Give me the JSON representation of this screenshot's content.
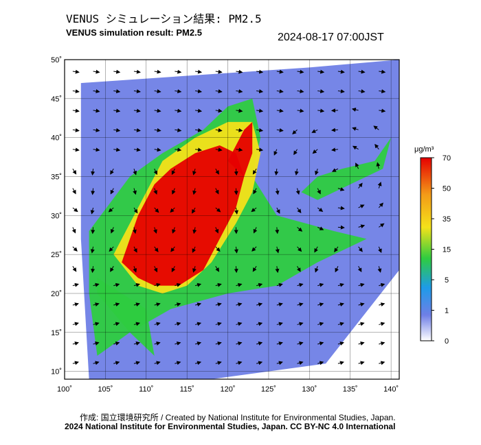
{
  "header": {
    "title_jp": "VENUS シミュレーション結果: PM2.5",
    "title_en": "VENUS simulation result: PM2.5",
    "timestamp": "2024-08-17 07:00JST"
  },
  "footer": {
    "credit_line": "作成: 国立環境研究所 / Created by National Institute for Environmental Studies, Japan.",
    "copyright_line": "2024 National Institute for Environmental Studies, Japan. CC BY-NC 4.0 International"
  },
  "colors": {
    "level_0": "#ffffff",
    "level_1": "#6f7fe6",
    "level_5": "#1e9be8",
    "level_15": "#2ecc40",
    "level_35": "#f4e21a",
    "level_50": "#f39a18",
    "level_70": "#e60000",
    "frame": "#000000"
  },
  "chart_data": {
    "type": "heatmap",
    "xlim": [
      100,
      141
    ],
    "ylim": [
      9,
      50
    ],
    "x_ticks": [
      100,
      105,
      110,
      115,
      120,
      125,
      130,
      135,
      140
    ],
    "x_tick_labels": [
      "100˚",
      "105˚",
      "110˚",
      "115˚",
      "120˚",
      "125˚",
      "130˚",
      "135˚",
      "140˚"
    ],
    "y_ticks": [
      10,
      15,
      20,
      25,
      30,
      35,
      40,
      45,
      50
    ],
    "y_tick_labels": [
      "10˚",
      "15˚",
      "20˚",
      "25˚",
      "30˚",
      "35˚",
      "40˚",
      "45˚",
      "50˚"
    ],
    "colorbar": {
      "unit": "μg/m³",
      "ticks": [
        0,
        1,
        5,
        15,
        35,
        50,
        70
      ],
      "tick_labels": [
        "0",
        "1",
        "5",
        "15",
        "35",
        "50",
        "70"
      ]
    },
    "regions": [
      {
        "name": "background_low",
        "value": 3,
        "polygon": [
          [
            102,
            47
          ],
          [
            130,
            49
          ],
          [
            141,
            50
          ],
          [
            141,
            23
          ],
          [
            132,
            11
          ],
          [
            118,
            9
          ],
          [
            103,
            9
          ],
          [
            102,
            27
          ]
        ]
      },
      {
        "name": "green_plume",
        "value": 20,
        "polygon": [
          [
            103,
            28
          ],
          [
            108,
            35
          ],
          [
            112,
            38
          ],
          [
            117,
            41
          ],
          [
            120,
            44
          ],
          [
            123,
            45
          ],
          [
            124,
            40
          ],
          [
            123,
            35
          ],
          [
            126,
            30
          ],
          [
            133,
            28
          ],
          [
            137,
            27
          ],
          [
            131,
            24
          ],
          [
            126,
            21
          ],
          [
            120,
            20
          ],
          [
            113,
            18
          ],
          [
            108,
            15
          ],
          [
            104,
            12
          ],
          [
            103,
            20
          ]
        ]
      },
      {
        "name": "green_low_tongue",
        "value": 18,
        "polygon": [
          [
            104,
            20
          ],
          [
            108,
            15
          ],
          [
            111,
            12
          ],
          [
            110,
            18
          ],
          [
            104,
            22
          ]
        ]
      },
      {
        "name": "yellow_band",
        "value": 45,
        "polygon": [
          [
            106,
            25
          ],
          [
            109,
            31
          ],
          [
            112,
            37
          ],
          [
            116,
            40
          ],
          [
            120,
            42
          ],
          [
            123,
            42
          ],
          [
            124,
            38
          ],
          [
            123,
            33
          ],
          [
            121,
            29
          ],
          [
            118,
            24
          ],
          [
            115,
            21
          ],
          [
            112,
            20
          ],
          [
            109,
            21
          ]
        ]
      },
      {
        "name": "red_core",
        "value": 70,
        "polygon": [
          [
            107,
            24
          ],
          [
            109,
            30
          ],
          [
            111,
            34
          ],
          [
            113,
            36
          ],
          [
            116,
            38
          ],
          [
            119,
            39
          ],
          [
            121,
            38
          ],
          [
            122,
            35
          ],
          [
            121,
            31
          ],
          [
            119,
            27
          ],
          [
            117,
            23
          ],
          [
            114,
            21
          ],
          [
            111,
            21
          ],
          [
            109,
            22
          ]
        ]
      },
      {
        "name": "red_northeast",
        "value": 70,
        "polygon": [
          [
            120,
            37
          ],
          [
            122,
            41
          ],
          [
            123,
            42
          ],
          [
            123,
            38
          ],
          [
            122,
            35
          ]
        ]
      },
      {
        "name": "japan_green",
        "value": 15,
        "polygon": [
          [
            129,
            33
          ],
          [
            131,
            35
          ],
          [
            134,
            36
          ],
          [
            138,
            37
          ],
          [
            140,
            40
          ],
          [
            139,
            36
          ],
          [
            135,
            34
          ],
          [
            131,
            32
          ]
        ]
      }
    ],
    "wind_field": "vectors"
  }
}
